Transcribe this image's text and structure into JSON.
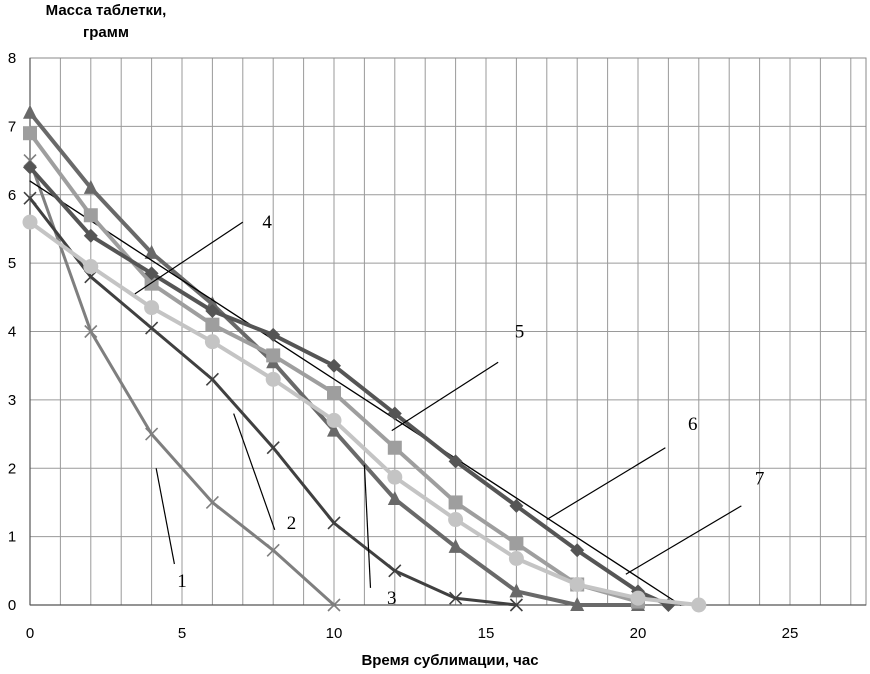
{
  "chart_data": {
    "type": "line",
    "ylabel": "Масса таблетки,\nграмм",
    "xlabel": "Время сублимации, час",
    "xlim": [
      0,
      27.5
    ],
    "ylim": [
      0,
      8
    ],
    "xticks": [
      0,
      5,
      10,
      15,
      20,
      25
    ],
    "yticks": [
      0,
      1,
      2,
      3,
      4,
      5,
      6,
      7,
      8
    ],
    "grid": true,
    "series": [
      {
        "name": "1",
        "color": "#7f7f7f",
        "marker": "x",
        "width": 3,
        "x": [
          0,
          2,
          4,
          6,
          8,
          10
        ],
        "y": [
          6.5,
          4.0,
          2.5,
          1.5,
          0.8,
          0.0
        ]
      },
      {
        "name": "2",
        "color": "#404040",
        "marker": "x",
        "width": 3,
        "x": [
          0,
          2,
          4,
          6,
          8,
          10,
          12,
          14,
          16
        ],
        "y": [
          5.95,
          4.8,
          4.05,
          3.3,
          2.3,
          1.2,
          0.5,
          0.1,
          0.0
        ]
      },
      {
        "name": "3",
        "color": "#696969",
        "marker": "triangle",
        "width": 4,
        "x": [
          0,
          2,
          4,
          6,
          8,
          10,
          12,
          14,
          16,
          18,
          20
        ],
        "y": [
          7.2,
          6.1,
          5.15,
          4.4,
          3.55,
          2.55,
          1.55,
          0.85,
          0.2,
          0.0,
          0.0
        ]
      },
      {
        "name": "4",
        "color": "#000000",
        "marker": "none",
        "width": 1.3,
        "x": [
          0,
          21.4
        ],
        "y": [
          6.2,
          0.0
        ]
      },
      {
        "name": "5",
        "color": "#9e9e9e",
        "marker": "square",
        "width": 4,
        "x": [
          0,
          2,
          4,
          6,
          8,
          10,
          12,
          14,
          16,
          18,
          20
        ],
        "y": [
          6.9,
          5.7,
          4.7,
          4.1,
          3.65,
          3.1,
          2.3,
          1.5,
          0.9,
          0.3,
          0.05
        ]
      },
      {
        "name": "6",
        "color": "#555555",
        "marker": "diamond",
        "width": 4,
        "x": [
          0,
          2,
          4,
          6,
          8,
          10,
          12,
          14,
          16,
          18,
          20,
          21
        ],
        "y": [
          6.4,
          5.4,
          4.85,
          4.3,
          3.95,
          3.5,
          2.8,
          2.1,
          1.45,
          0.8,
          0.2,
          0.0
        ]
      },
      {
        "name": "7",
        "color": "#c4c4c4",
        "marker": "circle",
        "width": 4,
        "x": [
          0,
          2,
          4,
          6,
          8,
          10,
          12,
          14,
          16,
          18,
          20,
          22
        ],
        "y": [
          5.6,
          4.95,
          4.35,
          3.85,
          3.3,
          2.7,
          1.87,
          1.25,
          0.68,
          0.3,
          0.1,
          0.0
        ]
      }
    ],
    "annotations": [
      {
        "text": "1",
        "x": 5.0,
        "y": 0.35,
        "line": [
          [
            4.15,
            2.0
          ],
          [
            4.75,
            0.6
          ]
        ]
      },
      {
        "text": "2",
        "x": 8.6,
        "y": 1.2,
        "line": [
          [
            6.7,
            2.8
          ],
          [
            8.05,
            1.1
          ]
        ]
      },
      {
        "text": "3",
        "x": 11.9,
        "y": 0.1,
        "line": [
          [
            11.0,
            2.05
          ],
          [
            11.2,
            0.25
          ]
        ]
      },
      {
        "text": "4",
        "x": 7.8,
        "y": 5.6,
        "line": [
          [
            3.45,
            4.55
          ],
          [
            7.0,
            5.6
          ]
        ]
      },
      {
        "text": "5",
        "x": 16.1,
        "y": 4.0,
        "line": [
          [
            11.9,
            2.55
          ],
          [
            15.4,
            3.55
          ]
        ]
      },
      {
        "text": "6",
        "x": 21.8,
        "y": 2.65,
        "line": [
          [
            17.0,
            1.25
          ],
          [
            20.9,
            2.3
          ]
        ]
      },
      {
        "text": "7",
        "x": 24.0,
        "y": 1.85,
        "line": [
          [
            19.6,
            0.45
          ],
          [
            23.4,
            1.45
          ]
        ]
      }
    ]
  }
}
